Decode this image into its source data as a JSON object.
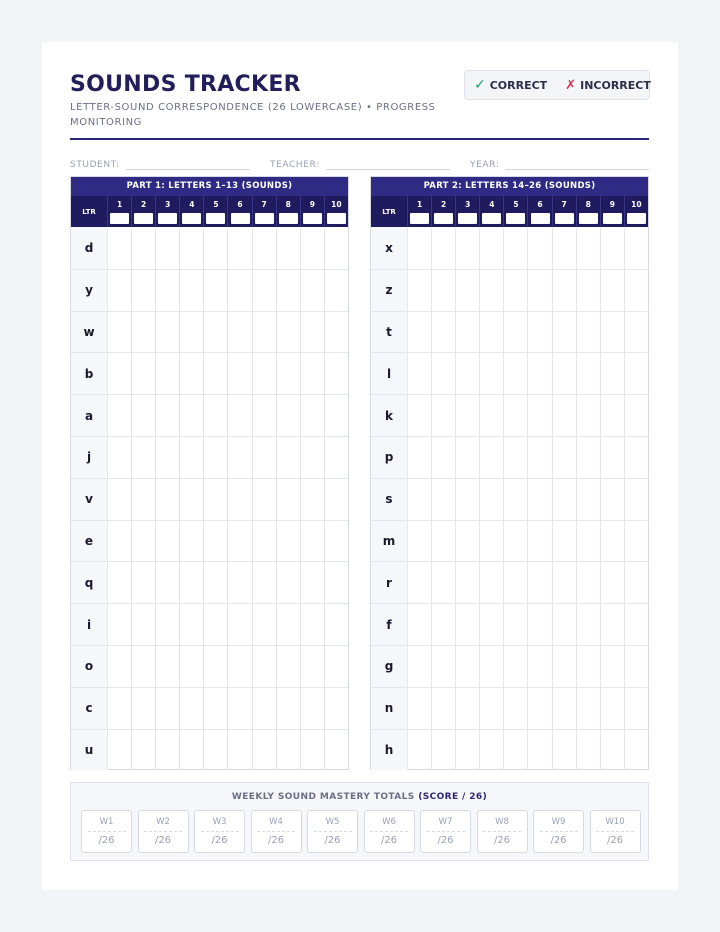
{
  "header": {
    "title": "SOUNDS TRACKER",
    "subtitle": "LETTER-SOUND CORRESPONDENCE (26 LOWERCASE) • PROGRESS MONITORING"
  },
  "legend": {
    "correct_mark": "✓",
    "correct_label": "CORRECT",
    "incorrect_mark": "✗",
    "incorrect_label": "INCORRECT",
    "correct_color": "#1f9d6b",
    "incorrect_color": "#d8324c"
  },
  "fields": {
    "student_label": "STUDENT:",
    "teacher_label": "TEACHER:",
    "year_label": "YEAR:"
  },
  "part1": {
    "title": "PART 1: LETTERS 1–13 (SOUNDS)",
    "ltr_header": "LTR",
    "trials": [
      "1",
      "2",
      "3",
      "4",
      "5",
      "6",
      "7",
      "8",
      "9",
      "10"
    ],
    "letters": [
      "d",
      "y",
      "w",
      "b",
      "a",
      "j",
      "v",
      "e",
      "q",
      "i",
      "o",
      "c",
      "u"
    ]
  },
  "part2": {
    "title": "PART 2: LETTERS 14–26 (SOUNDS)",
    "ltr_header": "LTR",
    "trials": [
      "1",
      "2",
      "3",
      "4",
      "5",
      "6",
      "7",
      "8",
      "9",
      "10"
    ],
    "letters": [
      "x",
      "z",
      "t",
      "l",
      "k",
      "p",
      "s",
      "m",
      "r",
      "f",
      "g",
      "n",
      "h"
    ]
  },
  "totals": {
    "title_prefix": "WEEKLY SOUND MASTERY TOTALS",
    "title_emphasis": "(SCORE / 26)",
    "weeks": [
      {
        "label": "W1",
        "score": "/26"
      },
      {
        "label": "W2",
        "score": "/26"
      },
      {
        "label": "W3",
        "score": "/26"
      },
      {
        "label": "W4",
        "score": "/26"
      },
      {
        "label": "W5",
        "score": "/26"
      },
      {
        "label": "W6",
        "score": "/26"
      },
      {
        "label": "W7",
        "score": "/26"
      },
      {
        "label": "W8",
        "score": "/26"
      },
      {
        "label": "W9",
        "score": "/26"
      },
      {
        "label": "W10",
        "score": "/26"
      }
    ]
  }
}
